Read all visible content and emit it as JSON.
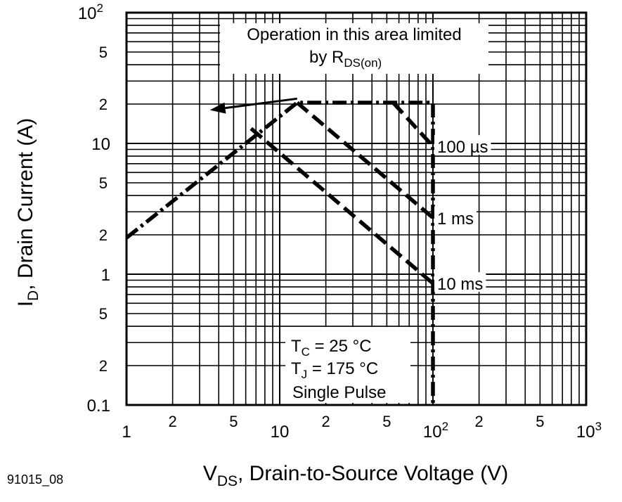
{
  "chart_data": {
    "type": "line",
    "xscale": "log",
    "yscale": "log",
    "xlim": [
      1,
      1000
    ],
    "ylim": [
      0.1,
      100
    ],
    "grid": true,
    "x_ticks": {
      "decades": [
        {
          "value": 1,
          "base": "1",
          "exp": ""
        },
        {
          "value": 10,
          "base": "10",
          "exp": ""
        },
        {
          "value": 100,
          "base": "10",
          "exp": "2"
        },
        {
          "value": 1000,
          "base": "10",
          "exp": "3"
        }
      ],
      "minors": [
        {
          "value": 2,
          "label": "2"
        },
        {
          "value": 5,
          "label": "5"
        },
        {
          "value": 20,
          "label": "2"
        },
        {
          "value": 50,
          "label": "5"
        },
        {
          "value": 200,
          "label": "2"
        },
        {
          "value": 500,
          "label": "5"
        }
      ]
    },
    "y_ticks": {
      "decades": [
        {
          "value": 0.1,
          "base": "0.1",
          "exp": ""
        },
        {
          "value": 1,
          "base": "1",
          "exp": ""
        },
        {
          "value": 10,
          "base": "10",
          "exp": ""
        },
        {
          "value": 100,
          "base": "10",
          "exp": "2"
        }
      ],
      "minors": [
        {
          "value": 0.2,
          "label": "2"
        },
        {
          "value": 0.5,
          "label": "5"
        },
        {
          "value": 2,
          "label": "2"
        },
        {
          "value": 5,
          "label": "5"
        },
        {
          "value": 20,
          "label": "2"
        },
        {
          "value": 50,
          "label": "5"
        }
      ]
    },
    "xlabel": {
      "main": "V",
      "sub": "DS",
      "rest": ", Drain-to-Source Voltage (V)"
    },
    "ylabel": {
      "main": "I",
      "sub": "D",
      "rest": ", Drain Current (A)"
    },
    "series": [
      {
        "name": "",
        "style": "dash-dot",
        "points": [
          [
            1,
            1.9
          ],
          [
            13,
            20.5
          ],
          [
            100,
            20.5
          ],
          [
            100,
            0.1
          ]
        ]
      },
      {
        "name": "",
        "style": "dashed",
        "points": [
          [
            13,
            20.5
          ],
          [
            100,
            2.7
          ]
        ]
      },
      {
        "name": "",
        "style": "dashed",
        "points": [
          [
            6.5,
            13
          ],
          [
            100,
            0.85
          ]
        ]
      },
      {
        "name": "",
        "style": "dashed",
        "points": [
          [
            55,
            20.5
          ],
          [
            100,
            9.5
          ]
        ]
      }
    ],
    "line_labels": [
      {
        "text": "100 µs",
        "x": 100,
        "y": 9.5
      },
      {
        "text": "1 ms",
        "x": 100,
        "y": 2.7
      },
      {
        "text": "10 ms",
        "x": 100,
        "y": 0.85
      }
    ],
    "annotation_limit": {
      "line1": "Operation in this area limited",
      "line2_prefix": "by R",
      "line2_sub": "DS(on)",
      "arrow_from": [
        13,
        22
      ],
      "arrow_to": [
        3.5,
        18
      ]
    },
    "conditions": {
      "tc": {
        "main": "T",
        "sub": "C",
        "rest": " = 25 °C"
      },
      "tj": {
        "main": "T",
        "sub": "J",
        "rest": " = 175 °C"
      },
      "pulse": "Single Pulse"
    }
  },
  "figure_id": "91015_08"
}
